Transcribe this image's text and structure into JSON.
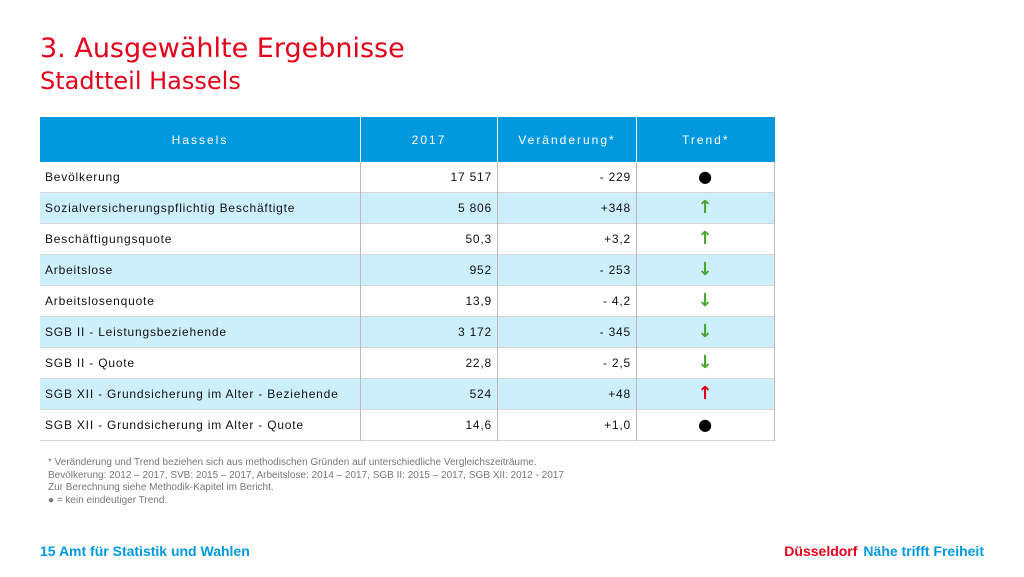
{
  "header": {
    "title": "3. Ausgewählte Ergebnisse",
    "subtitle": "Stadtteil Hassels"
  },
  "table": {
    "columns": [
      "Hassels",
      "2017",
      "Veränderung*",
      "Trend*"
    ],
    "rows": [
      {
        "label": "Bevölkerung",
        "value": "17 517",
        "change": "- 229",
        "trend": "dot"
      },
      {
        "label": "Sozialversicherungspflichtig Beschäftigte",
        "value": "5 806",
        "change": "+348",
        "trend": "up-green"
      },
      {
        "label": "Beschäftigungsquote",
        "value": "50,3",
        "change": "+3,2",
        "trend": "up-green"
      },
      {
        "label": "Arbeitslose",
        "value": "952",
        "change": "- 253",
        "trend": "down-green"
      },
      {
        "label": "Arbeitslosenquote",
        "value": "13,9",
        "change": "- 4,2",
        "trend": "down-green"
      },
      {
        "label": "SGB II - Leistungsbeziehende",
        "value": "3 172",
        "change": "- 345",
        "trend": "down-green"
      },
      {
        "label": "SGB II - Quote",
        "value": "22,8",
        "change": "- 2,5",
        "trend": "down-green"
      },
      {
        "label": "SGB XII - Grundsicherung im Alter - Beziehende",
        "value": "524",
        "change": "+48",
        "trend": "up-red"
      },
      {
        "label": "SGB XII - Grundsicherung im Alter - Quote",
        "value": "14,6",
        "change": "+1,0",
        "trend": "dot"
      }
    ]
  },
  "trend_icons": {
    "dot": {
      "glyph": "●",
      "color": "#000000",
      "icon": "neutral-dot-icon"
    },
    "up-green": {
      "glyph": "↑",
      "color": "#4aa830",
      "icon": "arrow-up-icon"
    },
    "down-green": {
      "glyph": "↓",
      "color": "#4aa830",
      "icon": "arrow-down-icon"
    },
    "up-red": {
      "glyph": "↑",
      "color": "#e2001a",
      "icon": "arrow-up-icon"
    }
  },
  "notes": [
    "* Veränderung und Trend beziehen sich aus methodischen Gründen auf unterschiedliche Vergleichszeiträume.",
    "Bevölkerung: 2012 – 2017, SVB: 2015 – 2017, Arbeitslose: 2014 – 2017, SGB II: 2015 – 2017, SGB XII: 2012 - 2017",
    "Zur Berechnung siehe Methodik-Kapitel im Bericht.",
    "● = kein eindeutiger Trend."
  ],
  "footer": {
    "left": "15 Amt für Statistik und Wahlen",
    "brand": "Düsseldorf",
    "slogan": "Nähe trifft Freiheit"
  },
  "colors": {
    "accent_red": "#e2001a",
    "accent_blue": "#0099dd",
    "row_tint": "#cdeffc",
    "trend_green": "#4aa830"
  }
}
